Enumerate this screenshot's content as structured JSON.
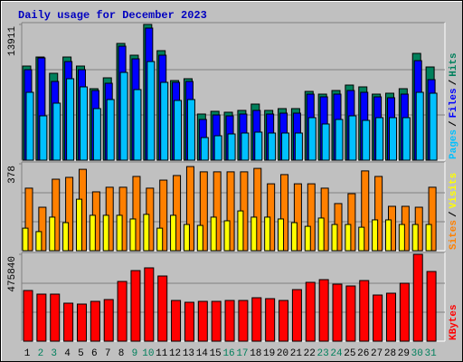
{
  "chart_data": {
    "type": "bar",
    "title": "Daily usage for December 2023",
    "categories": [
      "1",
      "2",
      "3",
      "4",
      "5",
      "6",
      "7",
      "8",
      "9",
      "10",
      "11",
      "12",
      "13",
      "14",
      "15",
      "16",
      "17",
      "18",
      "19",
      "20",
      "21",
      "22",
      "23",
      "24",
      "25",
      "26",
      "27",
      "28",
      "29",
      "30",
      "31"
    ],
    "category_colors": [
      "#000000",
      "#00805c",
      "#00805c",
      "#000000",
      "#000000",
      "#000000",
      "#000000",
      "#000000",
      "#00805c",
      "#00805c",
      "#000000",
      "#000000",
      "#000000",
      "#000000",
      "#000000",
      "#00805c",
      "#00805c",
      "#000000",
      "#000000",
      "#000000",
      "#000000",
      "#000000",
      "#00805c",
      "#00805c",
      "#000000",
      "#000000",
      "#000000",
      "#000000",
      "#000000",
      "#00805c",
      "#00805c"
    ],
    "legend_separator": "/",
    "panels": [
      {
        "ylim": [
          0,
          13911
        ],
        "yticks": [
          13911
        ],
        "gridlines": [
          4637,
          9274
        ],
        "series": [
          {
            "name": "Pages",
            "color": "#00c0ff",
            "values": [
              6956,
              4544,
              5843,
              8347,
              7512,
              5286,
              6214,
              8996,
              7234,
              10109,
              7976,
              6121,
              6214,
              2319,
              2504,
              2689,
              2782,
              2875,
              2782,
              2782,
              2782,
              4359,
              3710,
              4173,
              4544,
              4081,
              4359,
              4359,
              4359,
              6956,
              6863
            ]
          },
          {
            "name": "Files",
            "color": "#0000ff",
            "values": [
              9274,
              10480,
              8068,
              10109,
              9274,
              7141,
              7883,
              11685,
              10387,
              13540,
              10758,
              7976,
              8068,
              4173,
              4637,
              4544,
              4730,
              5101,
              4730,
              4822,
              4822,
              6770,
              6492,
              6770,
              7141,
              6956,
              6492,
              6399,
              6770,
              10201,
              8254
            ]
          },
          {
            "name": "Hits",
            "color": "#00805c",
            "values": [
              9645,
              10572,
              8903,
              10572,
              9645,
              7326,
              8439,
              11963,
              10758,
              13911,
              11222,
              8161,
              8347,
              4730,
              5008,
              4915,
              5101,
              5750,
              5101,
              5286,
              5286,
              7048,
              6770,
              7141,
              7697,
              7512,
              6770,
              6863,
              7326,
              10943,
              9552
            ]
          }
        ]
      },
      {
        "ylim": [
          0,
          378
        ],
        "yticks": [
          378
        ],
        "gridlines": [
          126,
          252
        ],
        "series": [
          {
            "name": "Sites",
            "color": "#ff8000",
            "values": [
              272,
              189,
              311,
              319,
              354,
              256,
              276,
              276,
              323,
              272,
              307,
              327,
              366,
              343,
              343,
              343,
              343,
              358,
              291,
              331,
              291,
              291,
              272,
              205,
              248,
              347,
              323,
              193,
              193,
              189,
              276
            ]
          },
          {
            "name": "Visits",
            "color": "#ffff00",
            "values": [
              98,
              83,
              146,
              122,
              224,
              154,
              154,
              154,
              138,
              158,
              98,
              154,
              114,
              110,
              146,
              130,
              173,
              146,
              146,
              138,
              122,
              106,
              142,
              114,
              114,
              102,
              134,
              134,
              114,
              114,
              114
            ]
          }
        ]
      },
      {
        "ylim": [
          0,
          475840
        ],
        "yticks": [
          475840
        ],
        "gridlines": [
          158613,
          317227
        ],
        "series": [
          {
            "name": "KBytes",
            "color": "#ff0000",
            "values": [
              277592,
              257764,
              257764,
              208194,
              203237,
              218108,
              228022,
              327162,
              386646,
              401517,
              356904,
              223065,
              213151,
              218108,
              218108,
              223065,
              223065,
              237936,
              232979,
              223065,
              282549,
              322205,
              337076,
              312291,
              302377,
              332119,
              252807,
              262721,
              317248,
              475840,
              381689
            ]
          }
        ]
      }
    ]
  }
}
